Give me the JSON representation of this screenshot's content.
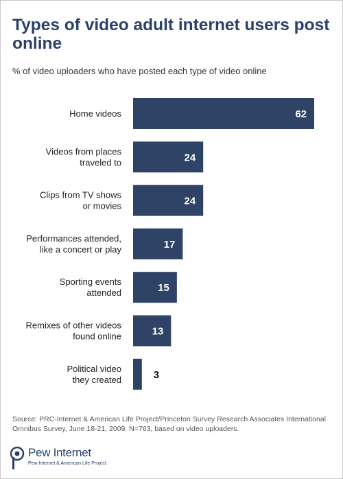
{
  "title": "Types of video adult internet users post online",
  "subtitle": "% of video uploaders who have posted each type of video online",
  "source": "Source: PRC-Internet & American Life Project/Princeton Survey Research Associates International Omnibus Survey, June 18-21, 2009. N=763, based on video uploaders.",
  "logo": {
    "name": "Pew Internet",
    "tagline": "Pew Internet & American Life Project"
  },
  "colors": {
    "bar": "#2e4366",
    "bar_label_inside": "#ffffff",
    "bar_label_outside": "#111111",
    "title": "#2b4169"
  },
  "chart_data": {
    "type": "bar",
    "orientation": "horizontal",
    "categories": [
      [
        "Home videos"
      ],
      [
        "Videos from places",
        "traveled to"
      ],
      [
        "Clips from TV shows",
        "or movies"
      ],
      [
        "Performances attended,",
        "like a concert or play"
      ],
      [
        "Sporting events",
        "attended"
      ],
      [
        "Remixes of other videos",
        "found online"
      ],
      [
        "Political video",
        "they created"
      ]
    ],
    "values": [
      62,
      24,
      24,
      17,
      15,
      13,
      3
    ],
    "xlim": [
      0,
      62
    ],
    "grid": false,
    "legend": "none"
  }
}
